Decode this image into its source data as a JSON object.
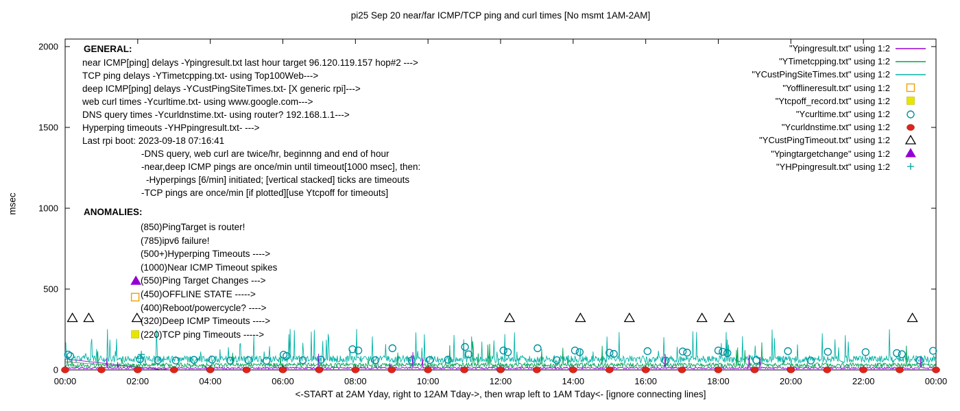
{
  "title": "pi25 Sep 20  near/far ICMP/TCP ping and curl times [No msmt 1AM-2AM]",
  "axes": {
    "ylabel": "msec",
    "xlabel": "<-START at 2AM Yday, right to 12AM Tday->, then wrap left to 1AM Tday<- [ignore connecting lines]"
  },
  "general": {
    "heading": "GENERAL:",
    "lines": [
      {
        "text": "near ICMP[ping] delays -Ypingresult.txt last hour target 96.120.119.157 hop#2 --->",
        "indent": 0
      },
      {
        "text": "TCP ping delays -YTimetcpping.txt- using Top100Web--->",
        "indent": 0
      },
      {
        "text": "deep ICMP[ping] delays -YCustPingSiteTimes.txt- [X generic rpi]--->",
        "indent": 0
      },
      {
        "text": "web curl times -Ycurltime.txt- using www.google.com--->",
        "indent": 0
      },
      {
        "text": "DNS query times -Ycurldnstime.txt- using router? 192.168.1.1--->",
        "indent": 0
      },
      {
        "text": "Hyperping timeouts -YHPpingresult.txt- --->",
        "indent": 0
      },
      {
        "text": "Last rpi boot: 2023-09-18 07:16:41",
        "indent": 0
      },
      {
        "text": "-DNS query, web curl are twice/hr, beginnng and end of hour",
        "indent": 86
      },
      {
        "text": "-near,deep ICMP pings are once/min until timeout[1000 msec], then:",
        "indent": 86
      },
      {
        "text": "-Hyperpings [6/min] initiated; [vertical stacked] ticks are timeouts",
        "indent": 93
      },
      {
        "text": "-TCP pings are once/min [if plotted][use Ytcpoff for timeouts]",
        "indent": 86
      }
    ]
  },
  "anomalies": {
    "heading": "ANOMALIES:",
    "lines": [
      "(850)PingTarget is router!",
      "(785)ipv6 failure!",
      "(500+)Hyperping Timeouts ---->",
      "(1000)Near ICMP Timeout spikes",
      "(550)Ping Target Changes --->",
      "(450)OFFLINE STATE ----->",
      "(400)Reboot/powercycle? ---->",
      "(320)Deep ICMP Timeouts ---->",
      "(220)TCP ping Timeouts ----->"
    ]
  },
  "legend": {
    "items": [
      {
        "label": "\"Ypingresult.txt\" using 1:2",
        "marker": "line",
        "color": "#9400d3"
      },
      {
        "label": "\"YTimetcpping.txt\" using 1:2",
        "marker": "line",
        "color": "#00a352"
      },
      {
        "label": "\"YCustPingSiteTimes.txt\" using 1:2",
        "marker": "line",
        "color": "#00b2a5"
      },
      {
        "label": "\"Yofflineresult.txt\" using 1:2",
        "marker": "open-square",
        "color": "#f0a000"
      },
      {
        "label": "\"Ytcpoff_record.txt\" using 1:2",
        "marker": "filled-square",
        "color": "#e8e600"
      },
      {
        "label": "\"Ycurltime.txt\" using 1:2",
        "marker": "open-circle",
        "color": "#0090a0"
      },
      {
        "label": "\"Ycurldnstime.txt\" using 1:2",
        "marker": "filled-circle",
        "color": "#e0241b"
      },
      {
        "label": "\"YCustPingTimeout.txt\" using 1:2",
        "marker": "open-triangle",
        "color": "#000000"
      },
      {
        "label": "\"Ypingtargetchange\" using 1:2",
        "marker": "filled-triangle",
        "color": "#9400d3"
      },
      {
        "label": "\"YHPpingresult.txt\" using 1:2",
        "marker": "plus",
        "color": "#00a0a0"
      }
    ]
  },
  "chart_data": {
    "type": "line",
    "title": "pi25 Sep 20  near/far ICMP/TCP ping and curl times [No msmt 1AM-2AM]",
    "xlabel": "<-START at 2AM Yday, right to 12AM Tday->, then wrap left to 1AM Tday<- [ignore connecting lines]",
    "ylabel": "msec",
    "xlim_hours": [
      0,
      24
    ],
    "ylim": [
      0,
      2000
    ],
    "grid": false,
    "legend_position": "top-right",
    "x_tick_hours": [
      0,
      2,
      4,
      6,
      8,
      10,
      12,
      14,
      16,
      18,
      20,
      22,
      24
    ],
    "x_tick_labels": [
      "00:00",
      "02:00",
      "04:00",
      "06:00",
      "08:00",
      "10:00",
      "12:00",
      "14:00",
      "16:00",
      "18:00",
      "20:00",
      "22:00",
      "00:00"
    ],
    "y_ticks": [
      0,
      500,
      1000,
      1500,
      2000
    ],
    "line_series": [
      {
        "name": "YCustPingSiteTimes.txt",
        "color": "#00b2a5",
        "base_msec": 66,
        "noise_msec": 22,
        "spike_prob": 0.05,
        "spike_range_msec": [
          100,
          255
        ],
        "seed": 33,
        "width": 0.9
      },
      {
        "name": "YTimetcpping.txt",
        "color": "#00a352",
        "base_msec": 30,
        "noise_msec": 13,
        "spike_prob": 0.018,
        "spike_range_msec": [
          60,
          180
        ],
        "seed": 22,
        "width": 0.9
      },
      {
        "name": "Ypingresult.txt",
        "color": "#9400d3",
        "base_msec": 12,
        "noise_msec": 6,
        "spike_prob": 0.004,
        "spike_range_msec": [
          40,
          110
        ],
        "seed": 11,
        "width": 0.9
      }
    ],
    "connecting_lines": [
      {
        "color": "#9400d3",
        "from": [
          0,
          68
        ],
        "to": [
          2.6,
          2
        ]
      },
      {
        "color": "#777777",
        "from": [
          0,
          50
        ],
        "to": [
          2.9,
          1
        ]
      }
    ],
    "scatter_series": [
      {
        "name": "Ycurltime.txt",
        "marker": "open-circle",
        "color": "#0090a0",
        "points": [
          [
            0.08,
            95
          ],
          [
            0.14,
            86
          ],
          [
            2.06,
            66
          ],
          [
            2.55,
            60
          ],
          [
            3.05,
            58
          ],
          [
            3.55,
            62
          ],
          [
            4.05,
            64
          ],
          [
            4.55,
            58
          ],
          [
            5.05,
            60
          ],
          [
            5.55,
            57
          ],
          [
            6.02,
            94
          ],
          [
            6.1,
            86
          ],
          [
            6.55,
            60
          ],
          [
            7.05,
            63
          ],
          [
            7.92,
            128
          ],
          [
            8.08,
            120
          ],
          [
            8.55,
            60
          ],
          [
            9.02,
            134
          ],
          [
            9.55,
            58
          ],
          [
            10.05,
            61
          ],
          [
            10.55,
            63
          ],
          [
            11.02,
            142
          ],
          [
            11.12,
            96
          ],
          [
            12.08,
            120
          ],
          [
            12.2,
            110
          ],
          [
            13.02,
            134
          ],
          [
            13.55,
            60
          ],
          [
            14.05,
            120
          ],
          [
            14.18,
            110
          ],
          [
            15.0,
            106
          ],
          [
            15.12,
            99
          ],
          [
            16.05,
            116
          ],
          [
            16.55,
            58
          ],
          [
            17.02,
            114
          ],
          [
            17.14,
            107
          ],
          [
            18.0,
            120
          ],
          [
            18.12,
            112
          ],
          [
            18.25,
            104
          ],
          [
            19.05,
            60
          ],
          [
            19.92,
            116
          ],
          [
            20.55,
            58
          ],
          [
            21.02,
            112
          ],
          [
            22.06,
            110
          ],
          [
            22.92,
            104
          ],
          [
            23.06,
            97
          ],
          [
            23.55,
            60
          ],
          [
            23.92,
            118
          ]
        ]
      },
      {
        "name": "Ycurldnstime.txt",
        "marker": "filled-circle",
        "color": "#e0241b",
        "points": [
          [
            0,
            0
          ],
          [
            1,
            0
          ],
          [
            2,
            0
          ],
          [
            3,
            0
          ],
          [
            4,
            0
          ],
          [
            5,
            0
          ],
          [
            6,
            0
          ],
          [
            7,
            0
          ],
          [
            8,
            0
          ],
          [
            9,
            0
          ],
          [
            10,
            0
          ],
          [
            11,
            0
          ],
          [
            12,
            0
          ],
          [
            13,
            0
          ],
          [
            14,
            0
          ],
          [
            15,
            0
          ],
          [
            16,
            0
          ],
          [
            17,
            0
          ],
          [
            18,
            0
          ],
          [
            19,
            0
          ],
          [
            20,
            0
          ],
          [
            21,
            0
          ],
          [
            22,
            0
          ],
          [
            23,
            0
          ],
          [
            24,
            0
          ]
        ]
      },
      {
        "name": "YCustPingTimeout.txt",
        "marker": "open-triangle",
        "color": "#000000",
        "points": [
          [
            0.2,
            320
          ],
          [
            0.65,
            320
          ],
          [
            1.98,
            320
          ],
          [
            12.25,
            320
          ],
          [
            14.2,
            320
          ],
          [
            15.55,
            320
          ],
          [
            17.55,
            320
          ],
          [
            18.3,
            320
          ],
          [
            23.35,
            320
          ]
        ]
      },
      {
        "name": "Ypingtargetchange",
        "marker": "filled-triangle",
        "color": "#9400d3",
        "points": [
          [
            1.95,
            550
          ]
        ]
      },
      {
        "name": "Yofflineresult.txt",
        "marker": "open-square",
        "color": "#f0a000",
        "points": [
          [
            1.93,
            450
          ]
        ]
      },
      {
        "name": "Ytcpoff_record.txt",
        "marker": "filled-square",
        "color": "#e8e600",
        "points": [
          [
            1.93,
            220
          ]
        ]
      },
      {
        "name": "YHPpingresult.txt",
        "marker": "plus",
        "color": "#00a0a0",
        "points": [
          [
            2.08,
            72
          ],
          [
            2.1,
            96
          ]
        ]
      }
    ]
  }
}
